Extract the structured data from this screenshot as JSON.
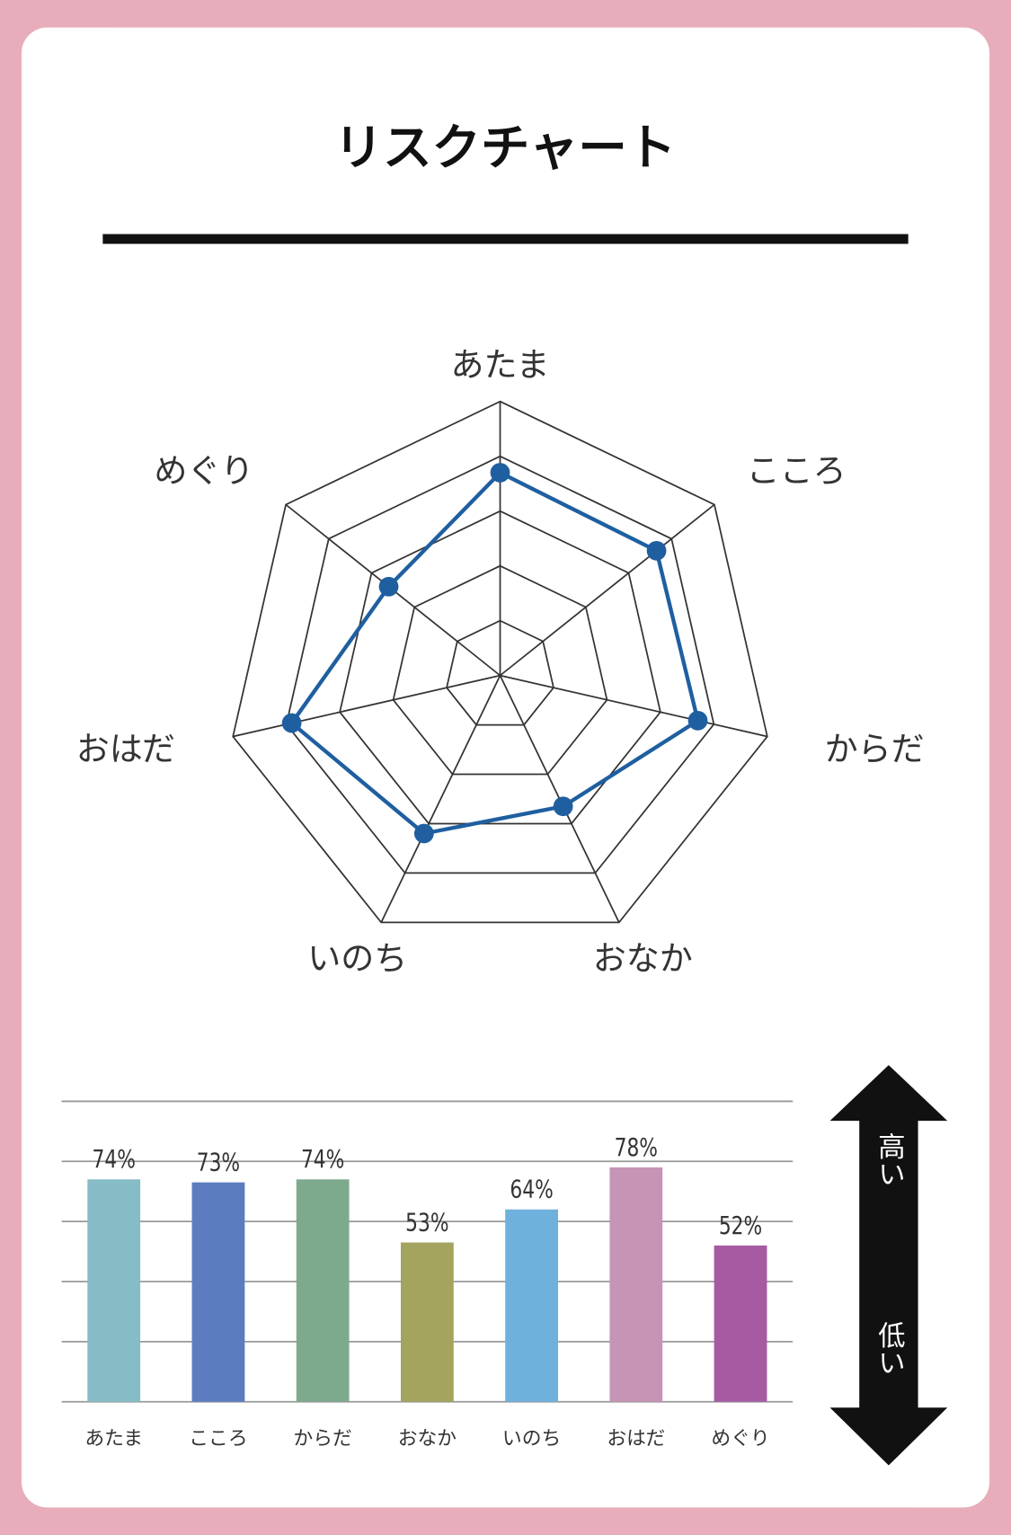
{
  "title": "リスクチャート",
  "colors": {
    "background": "#e8adba",
    "card": "#ffffff",
    "radar_line": "#1f5fa0",
    "arrow": "#111111"
  },
  "chart_data": [
    {
      "type": "radar",
      "categories": [
        "あたま",
        "こころ",
        "からだ",
        "おなか",
        "いのち",
        "おはだ",
        "めぐり"
      ],
      "values": [
        74,
        73,
        74,
        53,
        64,
        78,
        52
      ],
      "range": [
        0,
        100
      ],
      "rings": 5,
      "color": "#1f5fa0"
    },
    {
      "type": "bar",
      "categories": [
        "あたま",
        "こころ",
        "からだ",
        "おなか",
        "いのち",
        "おはだ",
        "めぐり"
      ],
      "values": [
        74,
        73,
        74,
        53,
        64,
        78,
        52
      ],
      "value_labels": [
        "74%",
        "73%",
        "74%",
        "53%",
        "64%",
        "78%",
        "52%"
      ],
      "colors": [
        "#86bcc6",
        "#5b7dc0",
        "#7daa8c",
        "#a4a45e",
        "#6fb1dd",
        "#c695b5",
        "#a55aa2"
      ],
      "ylim": [
        0,
        100
      ],
      "grid": true
    }
  ],
  "scale_arrow": {
    "high": "高い",
    "low": "低い"
  }
}
